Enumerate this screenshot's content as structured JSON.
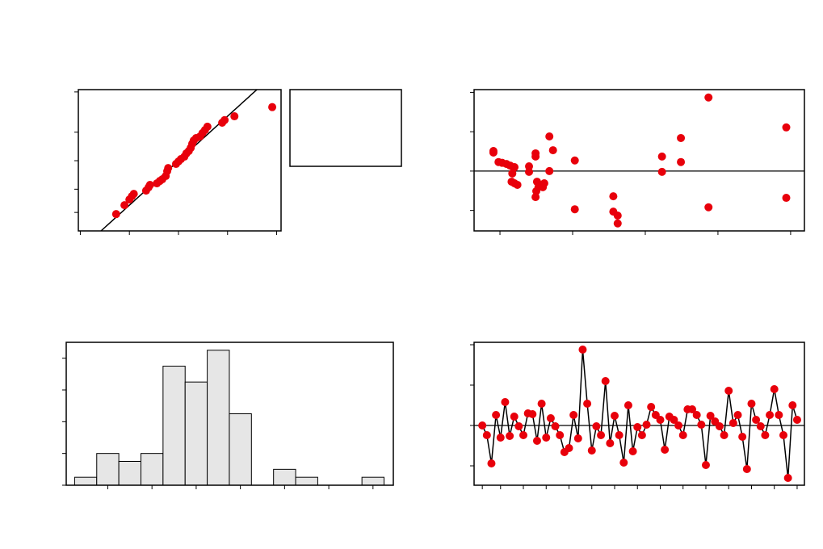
{
  "chart_data": [
    {
      "type": "scatter",
      "yscale": "probability",
      "color": "#e8000b",
      "x": [
        -1.27,
        -1.1,
        -1.0,
        -0.95,
        -0.91,
        -0.66,
        -0.61,
        -0.58,
        -0.44,
        -0.38,
        -0.33,
        -0.26,
        -0.23,
        -0.21,
        -0.05,
        0,
        0.05,
        0.12,
        0.16,
        0.21,
        0.25,
        0.28,
        0.31,
        0.36,
        0.44,
        0.49,
        0.54,
        0.59,
        0.89,
        0.94,
        1.14,
        1.91
      ],
      "y": [
        0.82,
        2.28,
        4.05,
        5.48,
        6.8,
        8.9,
        11.5,
        13.8,
        15.4,
        18.1,
        20.1,
        24.5,
        31.9,
        37.1,
        44.2,
        48.6,
        52.9,
        57.2,
        62.8,
        66.8,
        71.9,
        77.7,
        81.8,
        84.6,
        86.2,
        89.3,
        91.6,
        93.7,
        95.6,
        96.6,
        97.7,
        99.2
      ],
      "xlim": [
        -2.04,
        2.09
      ],
      "xticks": [
        -2,
        -1,
        0,
        1,
        2
      ],
      "ylim": [
        0.08,
        99.93
      ],
      "yticks": [
        1,
        10,
        50,
        90,
        99.9
      ],
      "fit_line": {
        "mean": 0,
        "sd": 0.5
      }
    },
    {
      "type": "scatter",
      "color": "#e8000b",
      "x": [
        9.1,
        9.1,
        9.8,
        10.3,
        10.9,
        11.4,
        11.9,
        12.0,
        11.7,
        11.6,
        12.0,
        12.4,
        14.0,
        14.0,
        14.9,
        14.9,
        15.1,
        15.3,
        15.0,
        14.9,
        15.8,
        15.9,
        16.1,
        16.8,
        17.3,
        16.8,
        20.3,
        20.3,
        25.6,
        25.6,
        26.2,
        26.2,
        32.3,
        32.3,
        34.9,
        34.9,
        38.7,
        38.7,
        49.4,
        49.4
      ],
      "y": [
        0.51,
        0.47,
        0.23,
        0.21,
        0.18,
        0.14,
        0.08,
        0.1,
        -0.06,
        -0.27,
        -0.31,
        -0.35,
        0.12,
        -0.02,
        0.45,
        0.37,
        -0.27,
        -0.41,
        -0.51,
        -0.66,
        -0.35,
        -0.41,
        -0.31,
        0.88,
        0.53,
        0,
        0.27,
        -0.97,
        -0.64,
        -1.03,
        -1.13,
        -1.33,
        0.37,
        -0.02,
        0.84,
        0.23,
        1.87,
        -0.92,
        1.11,
        -0.68
      ],
      "xlim": [
        6.44,
        51.9
      ],
      "xticks": [
        10,
        20,
        30,
        40,
        50
      ],
      "ylim": [
        -1.52,
        2.07
      ],
      "yticks": [
        -1,
        0,
        1,
        2
      ],
      "hline": 0
    },
    {
      "type": "histogram",
      "color": "#e6e6e6",
      "bins": [
        -1.375,
        -1.125,
        -0.875,
        -0.625,
        -0.375,
        -0.125,
        0.125,
        0.375,
        0.625,
        0.875,
        1.125,
        1.375,
        1.625,
        1.875,
        2.125
      ],
      "counts": [
        1,
        4,
        3,
        4,
        15,
        13,
        17,
        9,
        0,
        2,
        1,
        0,
        0,
        1
      ],
      "xlim": [
        -1.47,
        2.23
      ],
      "xticks": [
        -1,
        -0.5,
        0,
        0.5,
        1,
        1.5,
        2
      ],
      "ylim": [
        0,
        18
      ],
      "yticks": [
        0,
        4,
        8,
        12,
        16
      ]
    },
    {
      "type": "line",
      "color": "#e8000b",
      "x": [
        1,
        2,
        3,
        4,
        5,
        6,
        7,
        8,
        9,
        10,
        11,
        12,
        13,
        14,
        15,
        16,
        17,
        18,
        19,
        20,
        21,
        22,
        23,
        24,
        25,
        26,
        27,
        28,
        29,
        30,
        31,
        32,
        33,
        34,
        35,
        36,
        37,
        38,
        39,
        40,
        41,
        42,
        43,
        44,
        45,
        46,
        47,
        48,
        49,
        50,
        51,
        52,
        53,
        54,
        55,
        56,
        57,
        58,
        59,
        60,
        61,
        62,
        63,
        64,
        65,
        66,
        67,
        68,
        69,
        70
      ],
      "values": [
        0,
        -0.24,
        -0.94,
        0.26,
        -0.3,
        0.58,
        -0.26,
        0.22,
        -0.02,
        -0.24,
        0.3,
        0.28,
        -0.38,
        0.54,
        -0.3,
        0.18,
        -0.02,
        -0.24,
        -0.66,
        -0.56,
        0.26,
        -0.32,
        1.88,
        0.54,
        -0.62,
        -0.02,
        -0.24,
        1.1,
        -0.44,
        0.24,
        -0.24,
        -0.92,
        0.5,
        -0.64,
        -0.04,
        -0.24,
        0.02,
        0.46,
        0.26,
        0.14,
        -0.6,
        0.22,
        0.14,
        0,
        -0.24,
        0.4,
        0.4,
        0.26,
        0.02,
        -0.98,
        0.24,
        0.1,
        -0.02,
        -0.24,
        0.86,
        0.06,
        0.26,
        -0.28,
        -1.08,
        0.54,
        0.14,
        -0.02,
        -0.24,
        0.26,
        0.9,
        0.26,
        -0.24,
        -1.3,
        0.5,
        0.14
      ],
      "xlim": [
        -0.8,
        71.6
      ],
      "xticks": [
        1,
        5,
        10,
        15,
        20,
        25,
        30,
        35,
        40,
        45,
        50,
        55,
        60,
        65,
        70
      ],
      "ylim": [
        -1.48,
        2.06
      ],
      "yticks": [
        -1,
        0,
        1,
        2
      ],
      "hline": 0
    }
  ]
}
